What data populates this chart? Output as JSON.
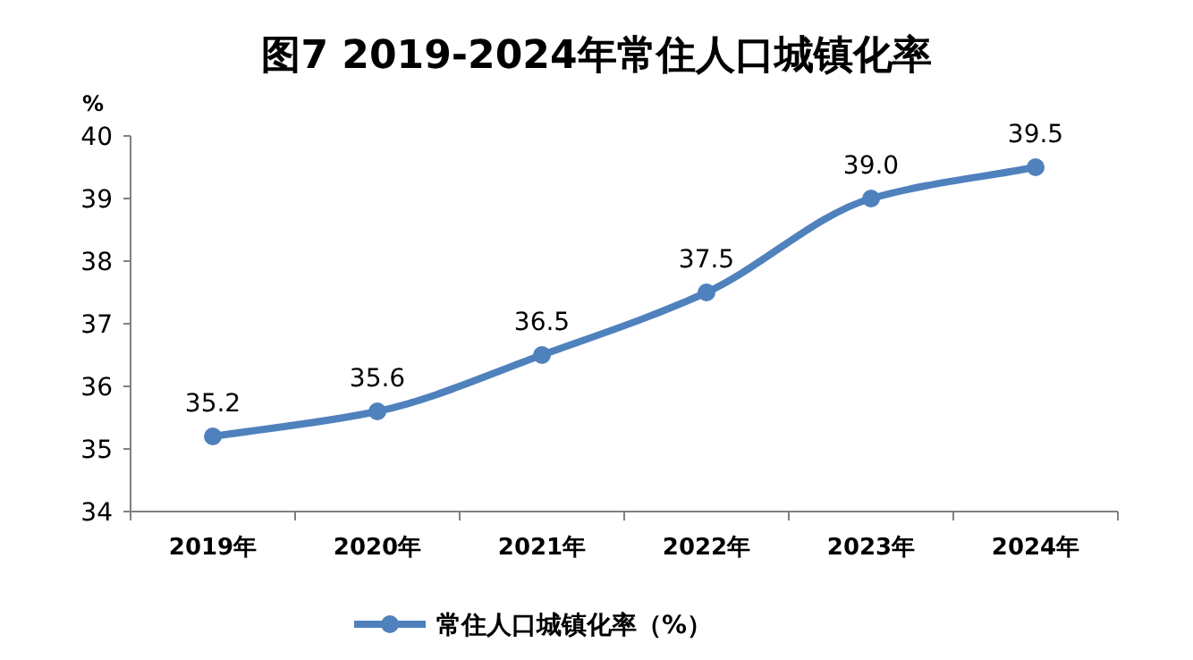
{
  "chart_data": {
    "type": "line",
    "title": "图7  2019-2024年常住人口城镇化率",
    "ylabel": "%",
    "categories": [
      "2019年",
      "2020年",
      "2021年",
      "2022年",
      "2023年",
      "2024年"
    ],
    "series": [
      {
        "name": "常住人口城镇化率（%）",
        "color": "#4f81bd",
        "values": [
          35.2,
          35.6,
          36.5,
          37.5,
          39.0,
          39.5
        ],
        "value_labels": [
          "35.2",
          "35.6",
          "36.5",
          "37.5",
          "39.0",
          "39.5"
        ]
      }
    ],
    "ylim": [
      34,
      40
    ],
    "yticks": [
      34,
      35,
      36,
      37,
      38,
      39,
      40
    ],
    "legend": "bottom",
    "marker": "circle"
  }
}
